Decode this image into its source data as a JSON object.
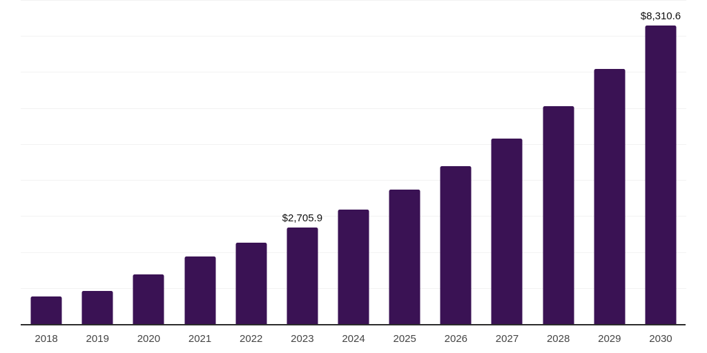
{
  "chart_data": {
    "type": "bar",
    "title": "",
    "xlabel": "",
    "ylabel": "",
    "legend": "none",
    "grid": true,
    "categories": [
      "2018",
      "2019",
      "2020",
      "2021",
      "2022",
      "2023",
      "2024",
      "2025",
      "2026",
      "2027",
      "2028",
      "2029",
      "2030"
    ],
    "values": [
      790,
      940,
      1390,
      1890,
      2280,
      2705.9,
      3200,
      3760,
      4410,
      5180,
      6080,
      7110,
      8310.6
    ],
    "value_labels": [
      {
        "category": "2023",
        "text": "$2,705.9"
      },
      {
        "category": "2030",
        "text": "$8,310.6"
      }
    ],
    "ylim": [
      0,
      9000
    ],
    "gridline_step": 1000,
    "colors": {
      "bar": "#3a1254",
      "grid_line": "#f2f2f2",
      "axis_line": "#2b2b2b",
      "tick_label": "#444444",
      "value_label": "#0f0f0f",
      "background": "#ffffff"
    }
  }
}
